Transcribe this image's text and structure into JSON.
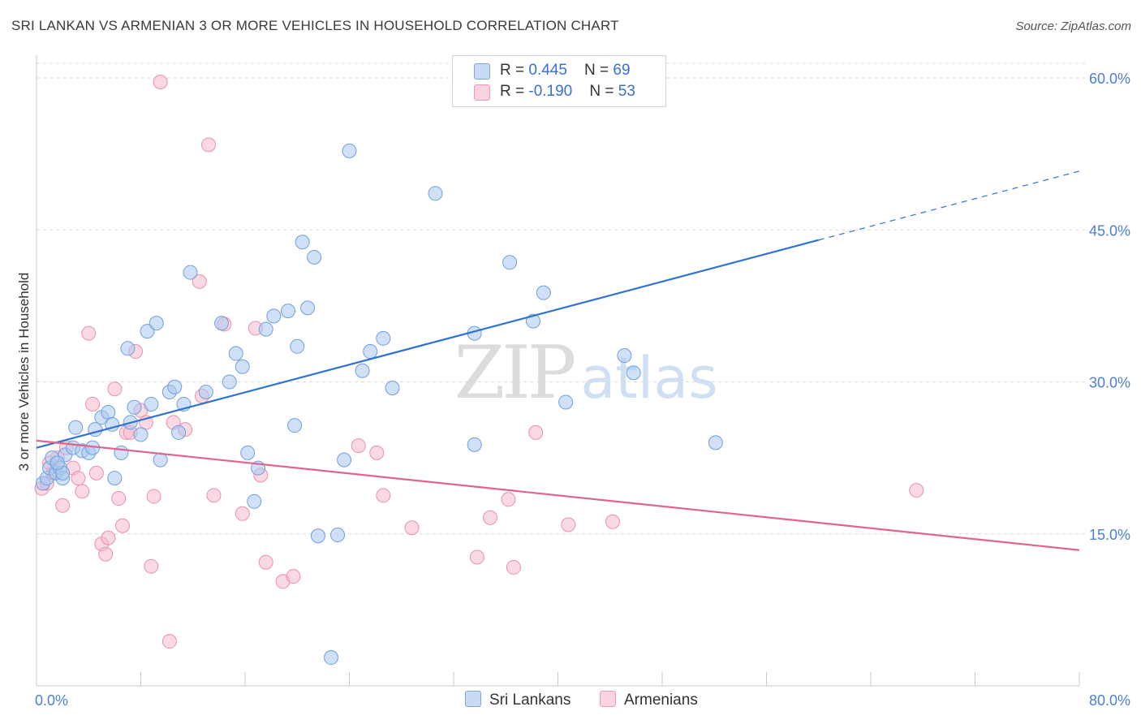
{
  "header": {
    "title": "SRI LANKAN VS ARMENIAN 3 OR MORE VEHICLES IN HOUSEHOLD CORRELATION CHART",
    "source": "Source: ZipAtlas.com"
  },
  "legend": {
    "rows": [
      {
        "r_label": "R = ",
        "r_value": "0.445",
        "n_label": "N = ",
        "n_value": "69"
      },
      {
        "r_label": "R = ",
        "r_value": "-0.190",
        "n_label": "N = ",
        "n_value": "53"
      }
    ],
    "series_labels": [
      "Sri Lankans",
      "Armenians"
    ]
  },
  "colors": {
    "sri_lankans_fill": "#a9c8f0",
    "sri_lankans_stroke": "#6f9fdc",
    "sri_lankans_line": "#2e72d2",
    "armenians_fill": "#f6b9cc",
    "armenians_stroke": "#ea8fae",
    "armenians_line": "#e0648f",
    "tick_text": "#4a7fd4",
    "grid": "#d9d9d9"
  },
  "chart_data": {
    "type": "scatter",
    "title": "SRI LANKAN VS ARMENIAN 3 OR MORE VEHICLES IN HOUSEHOLD CORRELATION CHART",
    "xlabel": "",
    "ylabel": "3 or more Vehicles in Household",
    "xlim": [
      0,
      80
    ],
    "ylim": [
      0,
      60
    ],
    "x_tick_labels": [
      "0.0%",
      "80.0%"
    ],
    "y_ticks": [
      15,
      30,
      45,
      60
    ],
    "y_tick_labels": [
      "15.0%",
      "30.0%",
      "45.0%",
      "60.0%"
    ],
    "grid": true,
    "legend_position": "top-center",
    "watermark": "ZIPatlas",
    "series": [
      {
        "name": "Sri Lankans",
        "r": 0.445,
        "n": 69,
        "trend": {
          "x0": 0,
          "y0": 23.5,
          "x1": 60,
          "y1": 44.0,
          "dashed_to_x": 80,
          "dashed_y1": 50.8
        },
        "points": [
          [
            0.5,
            20.0
          ],
          [
            0.8,
            20.5
          ],
          [
            1.0,
            21.5
          ],
          [
            1.2,
            22.5
          ],
          [
            1.5,
            21.0
          ],
          [
            1.8,
            21.5
          ],
          [
            2.0,
            20.5
          ],
          [
            2.2,
            22.8
          ],
          [
            2.8,
            23.5
          ],
          [
            3.0,
            25.5
          ],
          [
            3.5,
            23.2
          ],
          [
            4.0,
            23.0
          ],
          [
            4.5,
            25.3
          ],
          [
            5.0,
            26.5
          ],
          [
            5.5,
            27.0
          ],
          [
            5.8,
            25.8
          ],
          [
            6.0,
            20.5
          ],
          [
            6.5,
            23.0
          ],
          [
            7.0,
            33.3
          ],
          [
            7.2,
            26.0
          ],
          [
            7.5,
            27.5
          ],
          [
            8.0,
            24.8
          ],
          [
            8.5,
            35.0
          ],
          [
            8.8,
            27.8
          ],
          [
            9.2,
            35.8
          ],
          [
            9.5,
            22.3
          ],
          [
            10.2,
            29.0
          ],
          [
            10.6,
            29.5
          ],
          [
            10.9,
            25.0
          ],
          [
            11.3,
            27.8
          ],
          [
            11.8,
            40.8
          ],
          [
            13.0,
            29.0
          ],
          [
            14.2,
            35.8
          ],
          [
            14.8,
            30.0
          ],
          [
            15.3,
            32.8
          ],
          [
            15.8,
            31.5
          ],
          [
            16.2,
            23.0
          ],
          [
            16.7,
            18.2
          ],
          [
            17.0,
            21.5
          ],
          [
            17.6,
            35.2
          ],
          [
            18.2,
            36.5
          ],
          [
            19.3,
            37.0
          ],
          [
            19.8,
            25.7
          ],
          [
            20.0,
            33.5
          ],
          [
            20.4,
            43.8
          ],
          [
            20.8,
            37.3
          ],
          [
            21.3,
            42.3
          ],
          [
            21.6,
            14.8
          ],
          [
            22.6,
            2.8
          ],
          [
            23.1,
            14.9
          ],
          [
            23.6,
            22.3
          ],
          [
            24.0,
            52.8
          ],
          [
            25.0,
            31.1
          ],
          [
            25.6,
            33.0
          ],
          [
            26.6,
            34.3
          ],
          [
            27.3,
            29.4
          ],
          [
            30.6,
            48.6
          ],
          [
            33.6,
            23.8
          ],
          [
            33.6,
            34.8
          ],
          [
            36.3,
            41.8
          ],
          [
            38.1,
            36.0
          ],
          [
            38.9,
            38.8
          ],
          [
            40.6,
            28.0
          ],
          [
            45.1,
            32.6
          ],
          [
            45.8,
            30.9
          ],
          [
            52.1,
            24.0
          ],
          [
            2.0,
            21.0
          ],
          [
            4.3,
            23.5
          ],
          [
            1.6,
            22.0
          ]
        ]
      },
      {
        "name": "Armenians",
        "r": -0.19,
        "n": 53,
        "trend": {
          "x0": 0,
          "y0": 24.2,
          "x1": 80,
          "y1": 13.4
        },
        "points": [
          [
            0.4,
            19.5
          ],
          [
            0.8,
            20.0
          ],
          [
            1.0,
            22.0
          ],
          [
            1.3,
            21.0
          ],
          [
            1.6,
            22.5
          ],
          [
            2.0,
            17.8
          ],
          [
            2.3,
            23.5
          ],
          [
            2.8,
            21.5
          ],
          [
            3.2,
            20.5
          ],
          [
            3.5,
            19.2
          ],
          [
            4.0,
            34.8
          ],
          [
            4.3,
            27.8
          ],
          [
            4.6,
            21.0
          ],
          [
            5.0,
            14.0
          ],
          [
            5.3,
            13.0
          ],
          [
            5.5,
            14.6
          ],
          [
            6.0,
            29.3
          ],
          [
            6.3,
            18.5
          ],
          [
            6.6,
            15.8
          ],
          [
            6.9,
            25.0
          ],
          [
            7.2,
            25.0
          ],
          [
            7.6,
            33.0
          ],
          [
            8.0,
            27.2
          ],
          [
            8.4,
            26.0
          ],
          [
            8.8,
            11.8
          ],
          [
            9.0,
            18.7
          ],
          [
            9.5,
            59.6
          ],
          [
            10.2,
            4.4
          ],
          [
            10.5,
            26.0
          ],
          [
            11.4,
            25.3
          ],
          [
            12.5,
            39.9
          ],
          [
            12.7,
            28.6
          ],
          [
            13.2,
            53.4
          ],
          [
            13.6,
            18.8
          ],
          [
            14.4,
            35.7
          ],
          [
            15.8,
            17.0
          ],
          [
            16.8,
            35.3
          ],
          [
            17.2,
            20.8
          ],
          [
            17.6,
            12.2
          ],
          [
            18.9,
            10.3
          ],
          [
            19.7,
            10.8
          ],
          [
            24.7,
            23.7
          ],
          [
            26.1,
            23.0
          ],
          [
            26.6,
            18.8
          ],
          [
            28.8,
            15.6
          ],
          [
            33.8,
            12.7
          ],
          [
            34.8,
            16.6
          ],
          [
            36.2,
            18.4
          ],
          [
            36.6,
            11.7
          ],
          [
            38.3,
            25.0
          ],
          [
            40.8,
            15.9
          ],
          [
            44.2,
            16.2
          ],
          [
            67.5,
            19.3
          ]
        ]
      }
    ]
  }
}
